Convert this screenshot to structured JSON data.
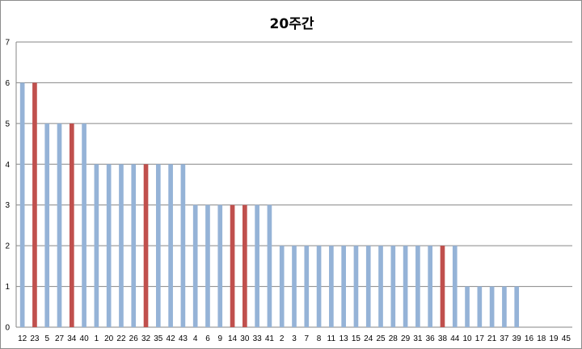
{
  "chart_data": {
    "type": "bar",
    "title": "20주간",
    "xlabel": "",
    "ylabel": "",
    "ylim": [
      0,
      7
    ],
    "yticks": [
      0,
      1,
      2,
      3,
      4,
      5,
      6,
      7
    ],
    "grid": true,
    "legend": "none",
    "categories": [
      "12",
      "23",
      "5",
      "27",
      "34",
      "40",
      "1",
      "20",
      "22",
      "26",
      "32",
      "35",
      "42",
      "43",
      "4",
      "6",
      "9",
      "14",
      "30",
      "33",
      "41",
      "2",
      "3",
      "7",
      "8",
      "11",
      "13",
      "15",
      "24",
      "25",
      "28",
      "29",
      "31",
      "36",
      "38",
      "44",
      "10",
      "17",
      "21",
      "37",
      "39",
      "16",
      "18",
      "19",
      "45"
    ],
    "values": [
      6,
      6,
      5,
      5,
      5,
      5,
      4,
      4,
      4,
      4,
      4,
      4,
      4,
      4,
      3,
      3,
      3,
      3,
      3,
      3,
      3,
      2,
      2,
      2,
      2,
      2,
      2,
      2,
      2,
      2,
      2,
      2,
      2,
      2,
      2,
      2,
      1,
      1,
      1,
      1,
      1,
      0,
      0,
      0,
      0
    ],
    "highlighted": [
      "23",
      "34",
      "32",
      "14",
      "30",
      "38"
    ],
    "colors": {
      "normal": "#95b3d7",
      "highlight": "#c0504d",
      "grid": "#868686"
    }
  }
}
